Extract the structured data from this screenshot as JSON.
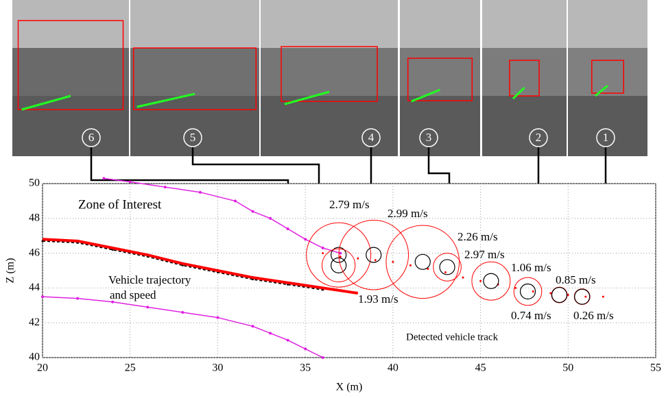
{
  "photos": [
    "6",
    "5",
    "4",
    "3",
    "2",
    "1"
  ],
  "chart_data": {
    "type": "scatter",
    "xlabel": "X (m)",
    "ylabel": "Z (m)",
    "xlim": [
      20,
      55
    ],
    "ylim": [
      40,
      50
    ],
    "xticks": [
      20,
      25,
      30,
      35,
      40,
      45,
      50,
      55
    ],
    "yticks": [
      40,
      42,
      44,
      46,
      48,
      50
    ],
    "grid": true,
    "series": [
      {
        "color": "#e020e0",
        "x": [
          23.5,
          25,
          27,
          29,
          31,
          32,
          33,
          34,
          35,
          36,
          37
        ],
        "values": [
          50.3,
          50.1,
          49.8,
          49.5,
          49.0,
          48.4,
          48.0,
          47.4,
          46.8,
          46.3,
          46.0
        ]
      },
      {
        "color": "#e020e0",
        "x": [
          20,
          22,
          24,
          26,
          28,
          30,
          32,
          33,
          34,
          35,
          36
        ],
        "values": [
          43.5,
          43.4,
          43.2,
          42.9,
          42.6,
          42.3,
          41.8,
          41.4,
          41.0,
          40.5,
          40.0
        ]
      },
      {
        "color": "#000000",
        "x": [
          20,
          22,
          24,
          26,
          28,
          30,
          32,
          34,
          36
        ],
        "values": [
          46.7,
          46.6,
          46.2,
          45.8,
          45.3,
          44.9,
          44.5,
          44.2,
          43.9
        ]
      },
      {
        "color": "#ff0000",
        "x": [
          20,
          22,
          24,
          26,
          28,
          30,
          32,
          34,
          36,
          38
        ],
        "values": [
          46.8,
          46.7,
          46.3,
          45.9,
          45.4,
          45.0,
          44.6,
          44.3,
          44.0,
          43.7
        ]
      },
      {
        "color": "#ff0000",
        "x": [
          36,
          37,
          38,
          39,
          40,
          41,
          42,
          43,
          44,
          45,
          46,
          47,
          48,
          49,
          50,
          51,
          52
        ],
        "values": [
          46.0,
          45.8,
          45.7,
          45.6,
          45.5,
          45.3,
          45.1,
          44.9,
          44.6,
          44.4,
          44.2,
          44.0,
          43.8,
          43.7,
          43.6,
          43.5,
          43.5
        ]
      }
    ],
    "detections": {
      "x": [
        36.9,
        36.9,
        38.9,
        41.7,
        43.1,
        45.6,
        47.7,
        49.5,
        50.8
      ],
      "values": [
        45.9,
        45.3,
        45.9,
        45.5,
        45.2,
        44.4,
        43.8,
        43.6,
        43.5
      ],
      "radius": [
        1.85,
        0.95,
        2.0,
        2.1,
        0.8,
        1.1,
        0.8,
        0.45,
        0.45
      ]
    },
    "annotations": [
      "Zone of Interest",
      "Vehicle trajectory",
      "and speed",
      "Detected vehicle track",
      "2.79 m/s",
      "2.99 m/s",
      "2.26 m/s",
      "2.97 m/s",
      "1.06 m/s",
      "0.85 m/s",
      "1.93 m/s",
      "0.74 m/s",
      "0.26 m/s"
    ]
  }
}
